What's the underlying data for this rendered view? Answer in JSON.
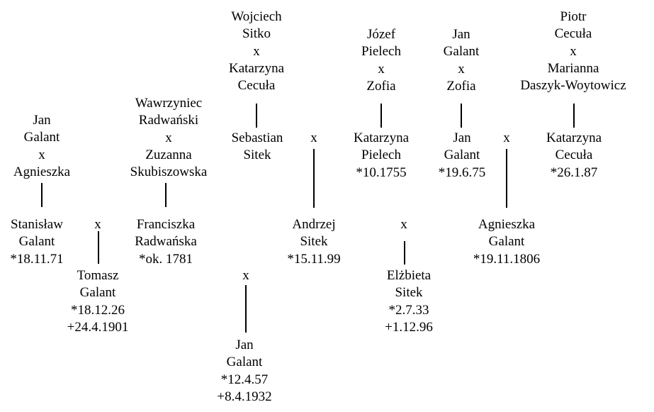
{
  "separator": "x",
  "nodes": {
    "sitko_cecula": [
      "Wojciech",
      "Sitko",
      "x",
      "Katarzyna",
      "Cecuła"
    ],
    "pielech_zofia": [
      "Józef",
      "Pielech",
      "x",
      "Zofia"
    ],
    "galant_zofia": [
      "Jan",
      "Galant",
      "x",
      "Zofia"
    ],
    "cecula_daszyk": [
      "Piotr",
      "Cecuła",
      "x",
      "Marianna",
      "Daszyk-Woytowicz"
    ],
    "radwanski": [
      "Wawrzyniec",
      "Radwański",
      "x",
      "Zuzanna",
      "Skubiszowska"
    ],
    "galant_agnieszka": [
      "Jan",
      "Galant",
      "x",
      "Agnieszka"
    ],
    "sebastian": [
      "Sebastian",
      "Sitek"
    ],
    "katarzyna_pielech": [
      "Katarzyna",
      "Pielech",
      "*10.1755"
    ],
    "jan_galant_1": [
      "Jan",
      "Galant",
      "*19.6.75"
    ],
    "katarzyna_cecula": [
      "Katarzyna",
      "Cecuła",
      "*26.1.87"
    ],
    "stanislaw": [
      "Stanisław",
      "Galant",
      "*18.11.71"
    ],
    "franciszka": [
      "Franciszka",
      "Radwańska",
      "*ok. 1781"
    ],
    "andrzej": [
      "Andrzej",
      "Sitek",
      "*15.11.99"
    ],
    "agnieszka": [
      "Agnieszka",
      "Galant",
      "*19.11.1806"
    ],
    "tomasz": [
      "Tomasz",
      "Galant",
      "*18.12.26",
      "+24.4.1901"
    ],
    "elzbieta": [
      "Elżbieta",
      "Sitek",
      "*2.7.33",
      "+1.12.96"
    ],
    "jan_galant_2": [
      "Jan",
      "Galant",
      "*12.4.57",
      "+8.4.1932"
    ]
  }
}
